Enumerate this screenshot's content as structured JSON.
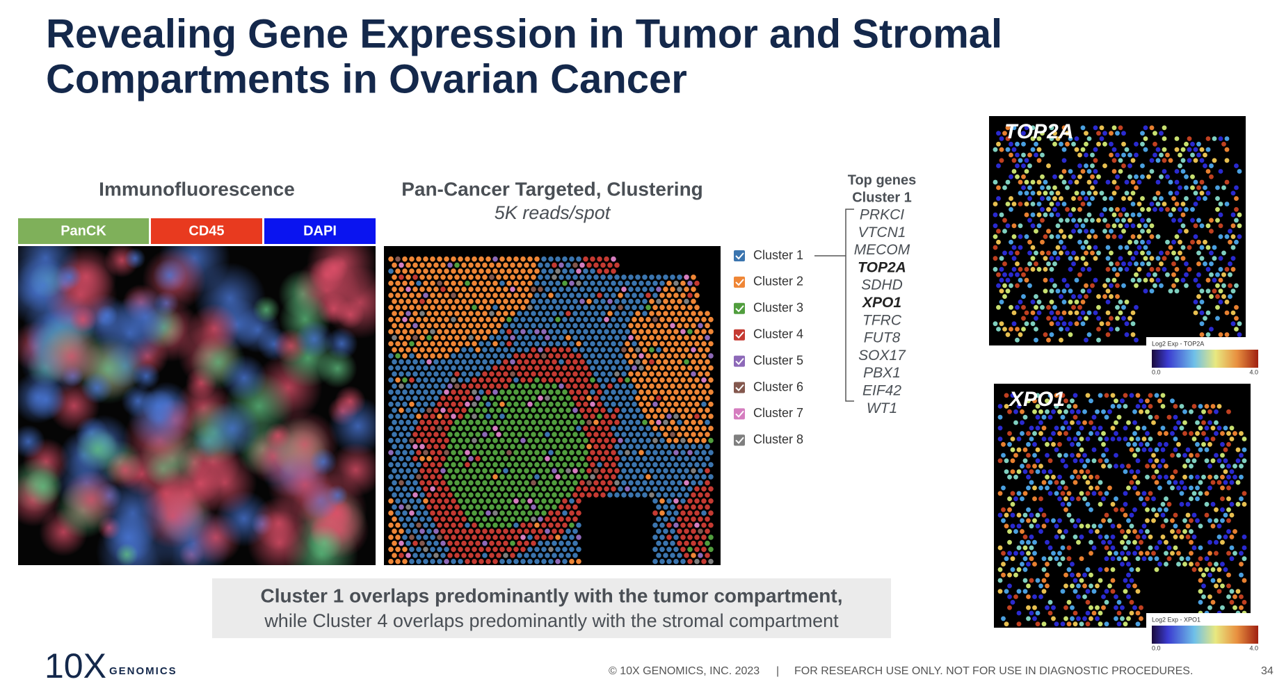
{
  "header": {
    "title_lines": [
      "Revealing Gene Expression in Tumor and Stromal",
      "Compartments in Ovarian Cancer"
    ]
  },
  "immunofluorescence": {
    "title": "Immunofluorescence",
    "channels": [
      {
        "label": "PanCK",
        "color": "#7fb05a"
      },
      {
        "label": "CD45",
        "color": "#e83a1f"
      },
      {
        "label": "DAPI",
        "color": "#0a14f0"
      }
    ]
  },
  "clustering": {
    "title": "Pan-Cancer Targeted, Clustering",
    "subtitle": "5K reads/spot",
    "clusters": [
      {
        "label": "Cluster 1",
        "color": "#3b75af"
      },
      {
        "label": "Cluster 2",
        "color": "#ef8636"
      },
      {
        "label": "Cluster 3",
        "color": "#519e3e"
      },
      {
        "label": "Cluster 4",
        "color": "#c53a32"
      },
      {
        "label": "Cluster 5",
        "color": "#8d69b8"
      },
      {
        "label": "Cluster 6",
        "color": "#84584e"
      },
      {
        "label": "Cluster 7",
        "color": "#d57dbf"
      },
      {
        "label": "Cluster 8",
        "color": "#7f7f7f"
      }
    ]
  },
  "top_genes": {
    "title_lines": [
      "Top genes",
      "Cluster 1"
    ],
    "genes": [
      {
        "text": "PRKCI"
      },
      {
        "text": "VTCN1"
      },
      {
        "text": "MECOM"
      },
      {
        "text": "TOP2A",
        "emphasis": true
      },
      {
        "text": "SDHD"
      },
      {
        "text": "XPO1",
        "emphasis": true
      },
      {
        "text": "TFRC"
      },
      {
        "text": "FUT8"
      },
      {
        "text": "SOX17"
      },
      {
        "text": "PBX1"
      },
      {
        "text": "EIF42"
      },
      {
        "text": "WT1"
      }
    ]
  },
  "expression_maps": [
    {
      "label": "TOP2A",
      "colorbar_label": "Log2 Exp - TOP2A",
      "colorbar_min": "0.0",
      "colorbar_max": "4.0"
    },
    {
      "label": "XPO1",
      "colorbar_label": "Log2 Exp - XPO1",
      "colorbar_min": "0.0",
      "colorbar_max": "4.0"
    }
  ],
  "caption": {
    "line1": "Cluster 1 overlaps predominantly with the tumor compartment,",
    "line2": "while Cluster 4 overlaps predominantly with the stromal compartment"
  },
  "footer": {
    "logo": "10X",
    "logo_sub": "GENOMICS",
    "copyright": "© 10X GENOMICS, INC. 2023",
    "separator": "|",
    "disclaimer": "FOR RESEARCH USE ONLY. NOT FOR USE IN DIAGNOSTIC PROCEDURES.",
    "page": "34"
  }
}
